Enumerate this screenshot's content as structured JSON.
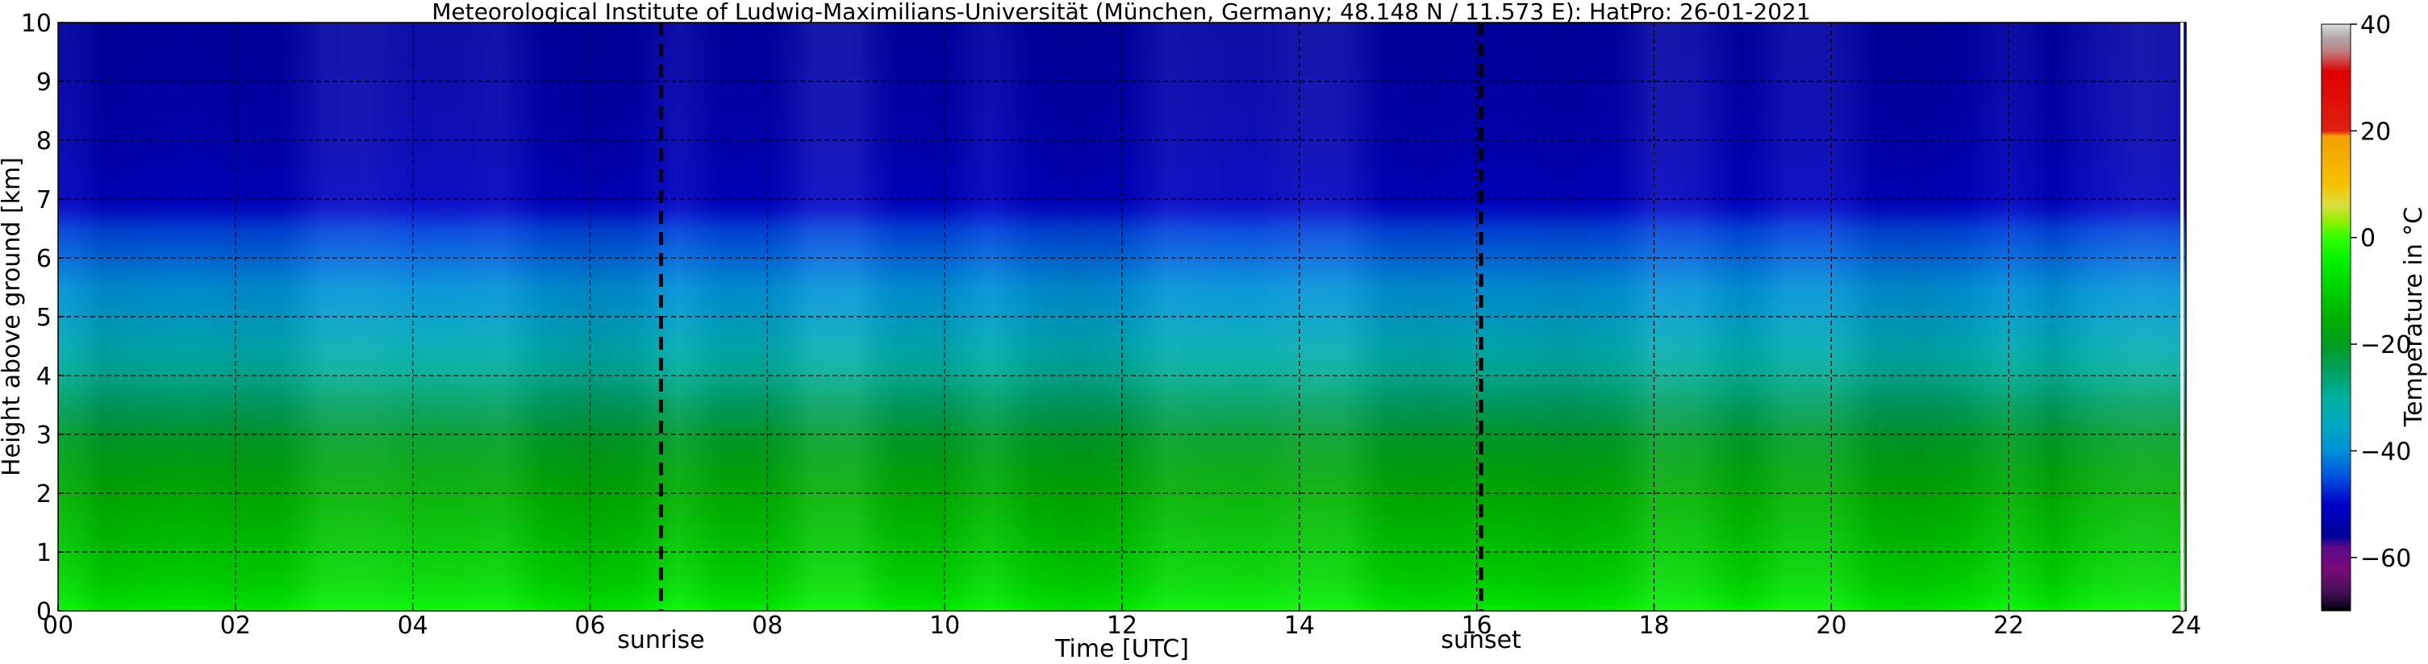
{
  "chart_data": {
    "type": "heatmap",
    "title": "Meteorological Institute of Ludwig-Maximilians-Universität (München, Germany; 48.148 N / 11.573 E):    HatPro: 26-01-2021",
    "xlabel": "Time [UTC]",
    "ylabel": "Height above ground [km]",
    "xlim": [
      0,
      24
    ],
    "ylim": [
      0,
      10
    ],
    "x_ticks": [
      "00",
      "02",
      "04",
      "06",
      "08",
      "10",
      "12",
      "14",
      "16",
      "18",
      "20",
      "22",
      "24"
    ],
    "x_tick_values": [
      0,
      2,
      4,
      6,
      8,
      10,
      12,
      14,
      16,
      18,
      20,
      22,
      24
    ],
    "y_ticks": [
      "0",
      "1",
      "2",
      "3",
      "4",
      "5",
      "6",
      "7",
      "8",
      "9",
      "10"
    ],
    "y_tick_values": [
      0,
      1,
      2,
      3,
      4,
      5,
      6,
      7,
      8,
      9,
      10
    ],
    "grid": true,
    "grid_style": "dashed",
    "events": [
      {
        "label": "sunrise",
        "time": 6.8
      },
      {
        "label": "sunset",
        "time": 16.05
      }
    ],
    "colorbar": {
      "label": "Temperature in $^\\circ$C",
      "range": [
        -70,
        40
      ],
      "ticks": [
        "40",
        "20",
        "0",
        "−20",
        "−40",
        "−60"
      ],
      "tick_values": [
        40,
        20,
        0,
        -20,
        -40,
        -60
      ],
      "stops": [
        {
          "value": -70,
          "color": "#000000"
        },
        {
          "value": -68,
          "color": "#2a0a3a"
        },
        {
          "value": -66,
          "color": "#4b0f5c"
        },
        {
          "value": -62,
          "color": "#7a0a7a"
        },
        {
          "value": -58,
          "color": "#5a0a8a"
        },
        {
          "value": -56,
          "color": "#00009a"
        },
        {
          "value": -50,
          "color": "#0000c8"
        },
        {
          "value": -45,
          "color": "#0050e0"
        },
        {
          "value": -40,
          "color": "#0090d8"
        },
        {
          "value": -35,
          "color": "#00a8c0"
        },
        {
          "value": -30,
          "color": "#00b0a0"
        },
        {
          "value": -25,
          "color": "#00a060"
        },
        {
          "value": -20,
          "color": "#009e20"
        },
        {
          "value": -15,
          "color": "#00b000"
        },
        {
          "value": -10,
          "color": "#00d000"
        },
        {
          "value": -5,
          "color": "#00f000"
        },
        {
          "value": 0,
          "color": "#30ff00"
        },
        {
          "value": 3,
          "color": "#90f000"
        },
        {
          "value": 6,
          "color": "#d8e040"
        },
        {
          "value": 10,
          "color": "#f8c000"
        },
        {
          "value": 19,
          "color": "#f0a000"
        },
        {
          "value": 20,
          "color": "#e02010"
        },
        {
          "value": 31,
          "color": "#e00000"
        },
        {
          "value": 33,
          "color": "#d04040"
        },
        {
          "value": 35,
          "color": "#c08080"
        },
        {
          "value": 37,
          "color": "#b0a0a0"
        },
        {
          "value": 39,
          "color": "#c8c8c8"
        },
        {
          "value": 40,
          "color": "#e0e0e0"
        }
      ]
    },
    "temperature_profile": {
      "heights_km": [
        0,
        0.1,
        0.3,
        0.6,
        1.0,
        1.5,
        2.0,
        2.5,
        3.0,
        3.5,
        4.0,
        4.5,
        5.0,
        5.5,
        6.0,
        6.5,
        6.8,
        7.0,
        7.5,
        8.0,
        9.0,
        10.0
      ],
      "temperatures_c": [
        -3,
        -5,
        -7,
        -9,
        -11,
        -13,
        -15,
        -18,
        -21,
        -25,
        -29,
        -33,
        -37,
        -40,
        -43,
        -46,
        -49,
        -51,
        -52,
        -53,
        -54,
        -55
      ]
    }
  }
}
